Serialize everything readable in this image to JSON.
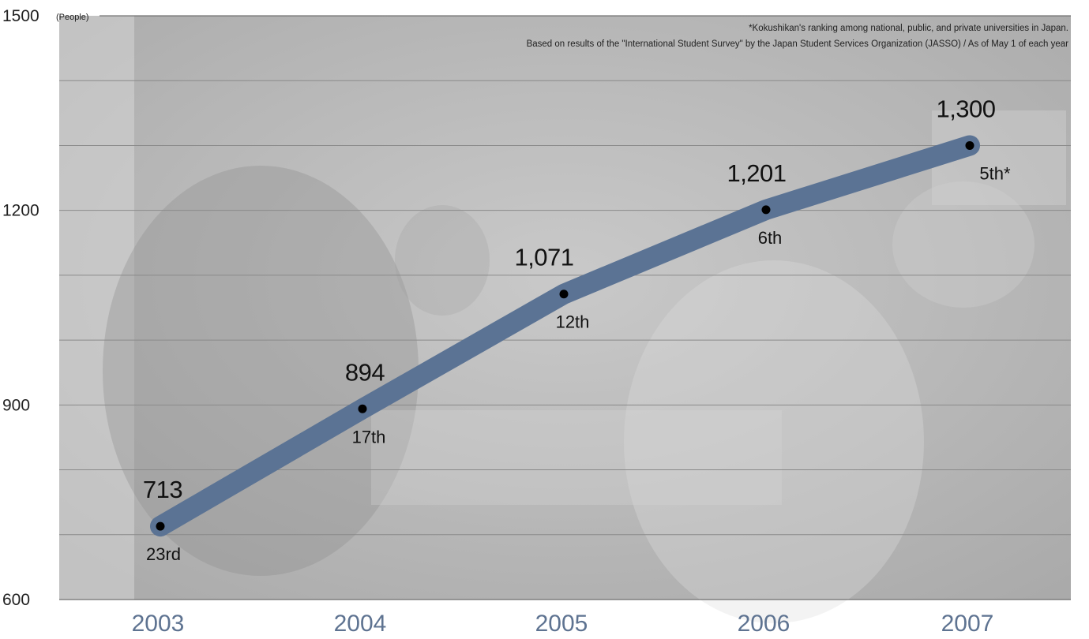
{
  "chart_data": {
    "type": "line",
    "categories": [
      "2003",
      "2004",
      "2005",
      "2006",
      "2007"
    ],
    "series": [
      {
        "values": [
          713,
          894,
          1071,
          1201,
          1300
        ],
        "value_labels": [
          "713",
          "894",
          "1,071",
          "1,201",
          "1,300"
        ],
        "rank_labels": [
          "23rd",
          "17th",
          "12th",
          "6th",
          "5th*"
        ]
      }
    ],
    "y_unit": "(People)",
    "y_ticks": [
      "1500",
      "1200",
      "900",
      "600"
    ],
    "ylim": [
      600,
      1500
    ],
    "grid": true,
    "notes": [
      "*Kokushikan's ranking among national, public, and private universities in Japan.",
      "Based on results of the \"International Student Survey\" by the Japan Student Services Organization (JASSO)  / As of May 1 of each year"
    ],
    "colors": {
      "line": "#5b7394",
      "marker": "#000000",
      "grid": "#8a8a8a",
      "year": "#5e7391",
      "background": "#b8b8b8"
    }
  }
}
